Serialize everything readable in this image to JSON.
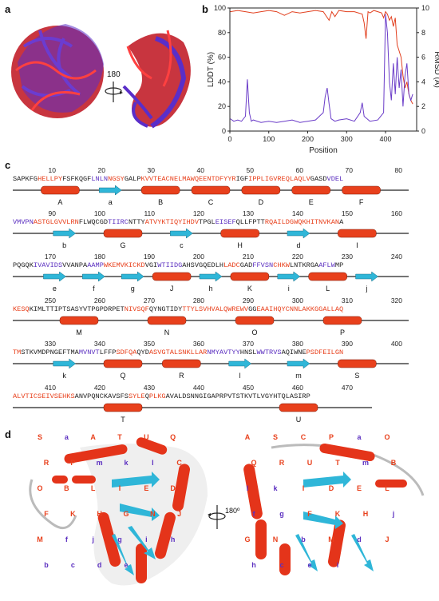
{
  "panels": {
    "a": "a",
    "b": "b",
    "c": "c",
    "d": "d"
  },
  "panel_a": {
    "rotation_label": "180"
  },
  "panel_d": {
    "rotation_label": "180º"
  },
  "chart_data": {
    "type": "line",
    "xlabel": "Position",
    "ylabel_left": "LDDT (%)",
    "ylabel_right": "RMSD (Å)",
    "xlim": [
      0,
      480
    ],
    "ylim_left": [
      0,
      100
    ],
    "ylim_right": [
      0,
      10
    ],
    "xticks": [
      "0",
      "100",
      "200",
      "300",
      "400"
    ],
    "yticks_left": [
      "0",
      "20",
      "40",
      "60",
      "80",
      "100"
    ],
    "yticks_right": [
      "0",
      "2",
      "4",
      "6",
      "8",
      "10"
    ],
    "series": [
      {
        "axis": "left",
        "color": "#e2401f",
        "x": [
          1,
          20,
          40,
          60,
          80,
          100,
          120,
          140,
          160,
          180,
          200,
          220,
          240,
          255,
          262,
          270,
          280,
          300,
          320,
          340,
          345,
          350,
          355,
          360,
          370,
          380,
          390,
          395,
          400,
          405,
          410,
          415,
          420,
          425,
          430,
          435,
          440,
          445,
          450,
          455,
          460,
          465,
          470
        ],
        "values": [
          97,
          98,
          97,
          96,
          97,
          98,
          97,
          94,
          97,
          96,
          97,
          98,
          97,
          90,
          97,
          93,
          98,
          97,
          97,
          95,
          88,
          75,
          97,
          96,
          98,
          97,
          96,
          92,
          97,
          95,
          90,
          93,
          85,
          92,
          70,
          65,
          60,
          45,
          35,
          40,
          30,
          25,
          22
        ]
      },
      {
        "axis": "right",
        "color": "#6a3cc8",
        "x": [
          1,
          10,
          20,
          30,
          40,
          45,
          50,
          55,
          60,
          80,
          100,
          120,
          140,
          160,
          180,
          200,
          220,
          240,
          245,
          250,
          255,
          260,
          270,
          280,
          300,
          320,
          335,
          340,
          345,
          360,
          380,
          395,
          400,
          405,
          410,
          415,
          420,
          425,
          430,
          435,
          440,
          445,
          450,
          455,
          460,
          465,
          470
        ],
        "values": [
          1.0,
          0.8,
          0.9,
          0.8,
          1.2,
          4.2,
          1.5,
          0.8,
          0.9,
          0.7,
          0.8,
          0.7,
          0.8,
          0.9,
          0.7,
          0.8,
          0.9,
          1.5,
          2.8,
          3.5,
          2.2,
          1.0,
          0.8,
          0.9,
          1.0,
          0.8,
          1.5,
          2.3,
          1.2,
          0.8,
          0.9,
          1.5,
          9.5,
          8.0,
          4.0,
          2.5,
          5.5,
          3.0,
          6.0,
          3.5,
          5.0,
          2.0,
          4.5,
          5.5,
          3.0,
          2.5,
          3.0
        ]
      }
    ]
  },
  "sequence_rows": [
    {
      "ticks": [
        "10",
        "20",
        "30",
        "40",
        "50",
        "60",
        "70",
        "80"
      ],
      "segments": [
        [
          "SAPKFG",
          "b"
        ],
        [
          "HELLPY",
          "r"
        ],
        [
          "FSFKQGF",
          "b"
        ],
        [
          "LNLN",
          "p"
        ],
        [
          "NGSY",
          "r"
        ],
        [
          "GALP",
          "b"
        ],
        [
          "KVVTEACNELMAWQEEN",
          "r"
        ],
        [
          "TDFYYR",
          "r"
        ],
        [
          "IGF",
          "b"
        ],
        [
          "IPPLIGVREQLAQLV",
          "r"
        ],
        [
          "GASD",
          "b"
        ],
        [
          "VDEL",
          "p"
        ]
      ],
      "labels": [
        "A",
        "a",
        "B",
        "C",
        "D",
        "E",
        "F"
      ]
    },
    {
      "ticks": [
        "90",
        "100",
        "110",
        "120",
        "130",
        "140",
        "150",
        "160"
      ],
      "segments": [
        [
          "VMVPN",
          "p"
        ],
        [
          "ASTGLGVVLRN",
          "r"
        ],
        [
          "FLWQCGD",
          "b"
        ],
        [
          "TIIRC",
          "p"
        ],
        [
          "NTTY",
          "b"
        ],
        [
          "ATVYKTIQYIHDV",
          "r"
        ],
        [
          "TPGL",
          "b"
        ],
        [
          "EISEF",
          "p"
        ],
        [
          "QLLFPTT",
          "b"
        ],
        [
          "RQAILDGWQKHITNVKAN",
          "r"
        ],
        [
          "A",
          "b"
        ]
      ],
      "labels": [
        "b",
        "G",
        "c",
        "H",
        "d",
        "I"
      ]
    },
    {
      "ticks": [
        "170",
        "180",
        "190",
        "200",
        "210",
        "220",
        "230",
        "240"
      ],
      "segments": [
        [
          "PQGQK",
          "b"
        ],
        [
          "IVAVIDS",
          "p"
        ],
        [
          "VVANPA",
          "b"
        ],
        [
          "AAMP",
          "p"
        ],
        [
          "WKEMVKICKD",
          "r"
        ],
        [
          "VGI",
          "b"
        ],
        [
          "WTIIDG",
          "p"
        ],
        [
          "AHSVGQEDLH",
          "b"
        ],
        [
          "LADC",
          "r"
        ],
        [
          "GAD",
          "b"
        ],
        [
          "FFVSN",
          "p"
        ],
        [
          "CHKW",
          "r"
        ],
        [
          "LNTKRGA",
          "b"
        ],
        [
          "AFLW",
          "p"
        ],
        [
          "MP",
          "b"
        ]
      ],
      "labels": [
        "e",
        "f",
        "g",
        "J",
        "h",
        "K",
        "i",
        "L",
        "j"
      ]
    },
    {
      "ticks": [
        "250",
        "260",
        "270",
        "280",
        "290",
        "300",
        "310",
        "320"
      ],
      "segments": [
        [
          "KESQ",
          "r"
        ],
        [
          "KIMLTTIPTSASYVTPGPDRPET",
          "b"
        ],
        [
          "NIVSQF",
          "r"
        ],
        [
          "QYNGTIDY",
          "b"
        ],
        [
          "TTYLSVHVALQWREWV",
          "r"
        ],
        [
          "GG",
          "b"
        ],
        [
          "EAAIHQYCNNLAKKGGALLAQ",
          "r"
        ]
      ],
      "labels": [
        "M",
        "N",
        "O",
        "P"
      ]
    },
    {
      "ticks": [
        "330",
        "340",
        "350",
        "360",
        "370",
        "380",
        "390",
        "400"
      ],
      "segments": [
        [
          "TM",
          "r"
        ],
        [
          "STKVMDPNGEFTMA",
          "b"
        ],
        [
          "MVNVT",
          "p"
        ],
        [
          "LFFP",
          "b"
        ],
        [
          "SDFQA",
          "r"
        ],
        [
          "QYD",
          "b"
        ],
        [
          "ASVGTALSNKLLAR",
          "r"
        ],
        [
          "NMYAVTYY",
          "p"
        ],
        [
          "HNSL",
          "b"
        ],
        [
          "WWTRVS",
          "p"
        ],
        [
          "AQIWNE",
          "b"
        ],
        [
          "PSDFEILGN",
          "r"
        ]
      ],
      "labels": [
        "k",
        "Q",
        "R",
        "l",
        "m",
        "S"
      ]
    },
    {
      "ticks": [
        "410",
        "420",
        "430",
        "440",
        "450",
        "460",
        "470"
      ],
      "segments": [
        [
          "ALVTICSEIVSEHKS",
          "r"
        ],
        [
          "ANVPQNCKAVSFS",
          "b"
        ],
        [
          "SYLE",
          "r"
        ],
        [
          "Q",
          "b"
        ],
        [
          "PLKG",
          "r"
        ],
        [
          "AVALDSNNGIGAPRPVTSTKVTLVGYHTQLASIRP",
          "b"
        ]
      ],
      "labels": [
        "T",
        "U"
      ]
    }
  ],
  "panel_d_labels": {
    "left": [
      "S",
      "a",
      "A",
      "T",
      "U",
      "Q",
      "R",
      "P",
      "m",
      "k",
      "l",
      "C",
      "O",
      "B",
      "L",
      "I",
      "E",
      "D",
      "F",
      "K",
      "H",
      "G",
      "N",
      "J",
      "M",
      "f",
      "j",
      "g",
      "i",
      "h",
      "b",
      "c",
      "d",
      "e"
    ],
    "right": [
      "A",
      "S",
      "C",
      "P",
      "a",
      "O",
      "Q",
      "R",
      "U",
      "T",
      "m",
      "B",
      "l",
      "k",
      "I",
      "D",
      "E",
      "L",
      "f",
      "g",
      "F",
      "K",
      "H",
      "j",
      "G",
      "N",
      "b",
      "M",
      "d",
      "J",
      "h",
      "c",
      "e",
      "i"
    ]
  },
  "colors": {
    "helix": "#e8401c",
    "strand": "#2fb6d8",
    "loop": "#222222",
    "red_text": "#e8401c",
    "purple_text": "#5b2fc0",
    "lddt": "#e2401f",
    "rmsd": "#6a3cc8"
  }
}
